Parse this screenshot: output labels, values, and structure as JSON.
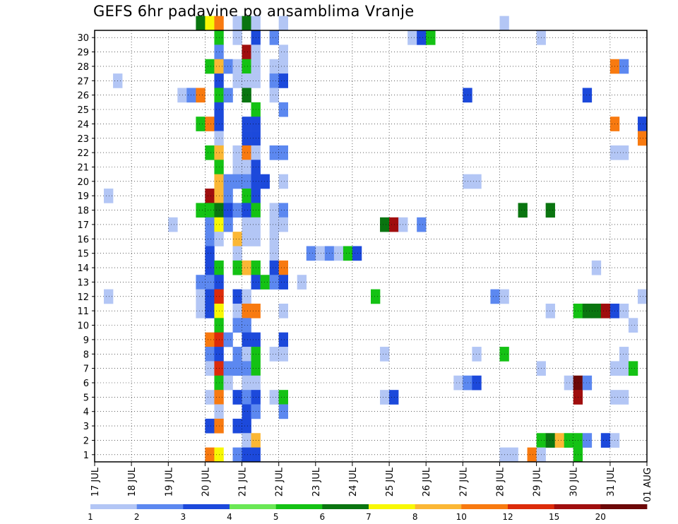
{
  "chart_data": {
    "type": "heatmap",
    "title": "GEFS 6hr padavine po ansamblima Vranje",
    "xlabel": "",
    "ylabel": "",
    "x_ticks": [
      "17 JUL",
      "18 JUL",
      "19 JUL",
      "20 JUL",
      "21 JUL",
      "22 JUL",
      "23 JUL",
      "24 JUL",
      "25 JUL",
      "26 JUL",
      "27 JUL",
      "28 JUL",
      "29 JUL",
      "30 JUL",
      "31 JUL",
      "01 AUG"
    ],
    "y_ticks": [
      "1",
      "2",
      "3",
      "4",
      "5",
      "6",
      "7",
      "8",
      "9",
      "10",
      "11",
      "12",
      "13",
      "14",
      "15",
      "16",
      "17",
      "18",
      "19",
      "20",
      "21",
      "22",
      "23",
      "24",
      "25",
      "26",
      "27",
      "28",
      "29",
      "30"
    ],
    "x_unit": "6-hour step from 17 JUL 00Z (4 steps per day)",
    "ylim": [
      0,
      30
    ],
    "grid": true,
    "grid_style": "dotted",
    "levels": [
      1,
      2,
      3,
      4,
      5,
      6,
      7,
      8,
      10,
      12,
      15,
      20
    ],
    "colors": [
      "#b3c6f5",
      "#5c88f0",
      "#1c49db",
      "#6ae855",
      "#14c214",
      "#0a7510",
      "#f8f804",
      "#fbb735",
      "#f87a10",
      "#dc2b0a",
      "#a00e0e",
      "#6c0808"
    ],
    "legend_position": "bottom",
    "cells": [
      {
        "t": 1,
        "m": 11,
        "v": 1
      },
      {
        "t": 1,
        "m": 18,
        "v": 1
      },
      {
        "t": 2,
        "m": 26,
        "v": 1
      },
      {
        "t": 8,
        "m": 16,
        "v": 1
      },
      {
        "t": 9,
        "m": 25,
        "v": 1
      },
      {
        "t": 10,
        "m": 25,
        "v": 2
      },
      {
        "t": 11,
        "m": 30,
        "v": 6
      },
      {
        "t": 11,
        "m": 25,
        "v": 10
      },
      {
        "t": 11,
        "m": 23,
        "v": 5
      },
      {
        "t": 11,
        "m": 17,
        "v": 5
      },
      {
        "t": 11,
        "m": 12,
        "v": 2
      },
      {
        "t": 11,
        "m": 11,
        "v": 1
      },
      {
        "t": 11,
        "m": 10,
        "v": 1
      },
      {
        "t": 12,
        "m": 30,
        "v": 7
      },
      {
        "t": 12,
        "m": 27,
        "v": 5
      },
      {
        "t": 12,
        "m": 23,
        "v": 10
      },
      {
        "t": 12,
        "m": 21,
        "v": 5
      },
      {
        "t": 12,
        "m": 18,
        "v": 15
      },
      {
        "t": 12,
        "m": 17,
        "v": 5
      },
      {
        "t": 12,
        "m": 16,
        "v": 2
      },
      {
        "t": 12,
        "m": 15,
        "v": 2
      },
      {
        "t": 12,
        "m": 14,
        "v": 3
      },
      {
        "t": 12,
        "m": 13,
        "v": 3
      },
      {
        "t": 12,
        "m": 12,
        "v": 2
      },
      {
        "t": 12,
        "m": 11,
        "v": 3
      },
      {
        "t": 12,
        "m": 10,
        "v": 3
      },
      {
        "t": 12,
        "m": 8,
        "v": 10
      },
      {
        "t": 12,
        "m": 7,
        "v": 2
      },
      {
        "t": 12,
        "m": 6,
        "v": 1
      },
      {
        "t": 12,
        "m": 4,
        "v": 1
      },
      {
        "t": 12,
        "m": 2,
        "v": 3
      },
      {
        "t": 12,
        "m": 0,
        "v": 10
      },
      {
        "t": 13,
        "m": 30,
        "v": 10
      },
      {
        "t": 13,
        "m": 29,
        "v": 5
      },
      {
        "t": 13,
        "m": 28,
        "v": 2
      },
      {
        "t": 13,
        "m": 27,
        "v": 8
      },
      {
        "t": 13,
        "m": 26,
        "v": 3
      },
      {
        "t": 13,
        "m": 25,
        "v": 5
      },
      {
        "t": 13,
        "m": 24,
        "v": 3
      },
      {
        "t": 13,
        "m": 23,
        "v": 3
      },
      {
        "t": 13,
        "m": 22,
        "v": 1
      },
      {
        "t": 13,
        "m": 21,
        "v": 8
      },
      {
        "t": 13,
        "m": 20,
        "v": 5
      },
      {
        "t": 13,
        "m": 19,
        "v": 8
      },
      {
        "t": 13,
        "m": 18,
        "v": 8
      },
      {
        "t": 13,
        "m": 17,
        "v": 6
      },
      {
        "t": 13,
        "m": 16,
        "v": 7
      },
      {
        "t": 13,
        "m": 15,
        "v": 1
      },
      {
        "t": 13,
        "m": 13,
        "v": 5
      },
      {
        "t": 13,
        "m": 12,
        "v": 3
      },
      {
        "t": 13,
        "m": 11,
        "v": 12
      },
      {
        "t": 13,
        "m": 10,
        "v": 7
      },
      {
        "t": 13,
        "m": 9,
        "v": 5
      },
      {
        "t": 13,
        "m": 8,
        "v": 12
      },
      {
        "t": 13,
        "m": 7,
        "v": 3
      },
      {
        "t": 13,
        "m": 6,
        "v": 12
      },
      {
        "t": 13,
        "m": 5,
        "v": 5
      },
      {
        "t": 13,
        "m": 4,
        "v": 10
      },
      {
        "t": 13,
        "m": 3,
        "v": 1
      },
      {
        "t": 13,
        "m": 2,
        "v": 10
      },
      {
        "t": 13,
        "m": 0,
        "v": 7
      },
      {
        "t": 14,
        "m": 27,
        "v": 2
      },
      {
        "t": 14,
        "m": 25,
        "v": 2
      },
      {
        "t": 14,
        "m": 19,
        "v": 2
      },
      {
        "t": 14,
        "m": 18,
        "v": 2
      },
      {
        "t": 14,
        "m": 17,
        "v": 3
      },
      {
        "t": 14,
        "m": 16,
        "v": 2
      },
      {
        "t": 14,
        "m": 8,
        "v": 2
      },
      {
        "t": 14,
        "m": 6,
        "v": 2
      },
      {
        "t": 14,
        "m": 5,
        "v": 1
      },
      {
        "t": 15,
        "m": 30,
        "v": 1
      },
      {
        "t": 15,
        "m": 29,
        "v": 1
      },
      {
        "t": 15,
        "m": 27,
        "v": 1
      },
      {
        "t": 15,
        "m": 26,
        "v": 1
      },
      {
        "t": 15,
        "m": 21,
        "v": 1
      },
      {
        "t": 15,
        "m": 20,
        "v": 1
      },
      {
        "t": 15,
        "m": 19,
        "v": 2
      },
      {
        "t": 15,
        "m": 17,
        "v": 2
      },
      {
        "t": 15,
        "m": 15,
        "v": 8
      },
      {
        "t": 15,
        "m": 14,
        "v": 1
      },
      {
        "t": 15,
        "m": 13,
        "v": 5
      },
      {
        "t": 15,
        "m": 11,
        "v": 3
      },
      {
        "t": 15,
        "m": 10,
        "v": 1
      },
      {
        "t": 15,
        "m": 9,
        "v": 2
      },
      {
        "t": 15,
        "m": 7,
        "v": 2
      },
      {
        "t": 15,
        "m": 6,
        "v": 2
      },
      {
        "t": 15,
        "m": 4,
        "v": 3
      },
      {
        "t": 15,
        "m": 2,
        "v": 3
      },
      {
        "t": 15,
        "m": 0,
        "v": 2
      },
      {
        "t": 16,
        "m": 30,
        "v": 6
      },
      {
        "t": 16,
        "m": 28,
        "v": 15
      },
      {
        "t": 16,
        "m": 27,
        "v": 5
      },
      {
        "t": 16,
        "m": 26,
        "v": 1
      },
      {
        "t": 16,
        "m": 25,
        "v": 6
      },
      {
        "t": 16,
        "m": 23,
        "v": 3
      },
      {
        "t": 16,
        "m": 22,
        "v": 3
      },
      {
        "t": 16,
        "m": 21,
        "v": 10
      },
      {
        "t": 16,
        "m": 20,
        "v": 1
      },
      {
        "t": 16,
        "m": 19,
        "v": 2
      },
      {
        "t": 16,
        "m": 18,
        "v": 5
      },
      {
        "t": 16,
        "m": 17,
        "v": 3
      },
      {
        "t": 16,
        "m": 16,
        "v": 1
      },
      {
        "t": 16,
        "m": 15,
        "v": 1
      },
      {
        "t": 16,
        "m": 13,
        "v": 8
      },
      {
        "t": 16,
        "m": 11,
        "v": 1
      },
      {
        "t": 16,
        "m": 10,
        "v": 10
      },
      {
        "t": 16,
        "m": 9,
        "v": 2
      },
      {
        "t": 16,
        "m": 8,
        "v": 3
      },
      {
        "t": 16,
        "m": 7,
        "v": 1
      },
      {
        "t": 16,
        "m": 6,
        "v": 2
      },
      {
        "t": 16,
        "m": 5,
        "v": 1
      },
      {
        "t": 16,
        "m": 4,
        "v": 2
      },
      {
        "t": 16,
        "m": 3,
        "v": 3
      },
      {
        "t": 16,
        "m": 2,
        "v": 3
      },
      {
        "t": 16,
        "m": 1,
        "v": 1
      },
      {
        "t": 16,
        "m": 0,
        "v": 3
      },
      {
        "t": 17,
        "m": 30,
        "v": 1
      },
      {
        "t": 17,
        "m": 29,
        "v": 3
      },
      {
        "t": 17,
        "m": 28,
        "v": 1
      },
      {
        "t": 17,
        "m": 27,
        "v": 1
      },
      {
        "t": 17,
        "m": 26,
        "v": 1
      },
      {
        "t": 17,
        "m": 24,
        "v": 5
      },
      {
        "t": 17,
        "m": 23,
        "v": 3
      },
      {
        "t": 17,
        "m": 22,
        "v": 3
      },
      {
        "t": 17,
        "m": 21,
        "v": 1
      },
      {
        "t": 17,
        "m": 20,
        "v": 3
      },
      {
        "t": 17,
        "m": 19,
        "v": 3
      },
      {
        "t": 17,
        "m": 18,
        "v": 3
      },
      {
        "t": 17,
        "m": 17,
        "v": 5
      },
      {
        "t": 17,
        "m": 16,
        "v": 1
      },
      {
        "t": 17,
        "m": 15,
        "v": 1
      },
      {
        "t": 17,
        "m": 13,
        "v": 5
      },
      {
        "t": 17,
        "m": 12,
        "v": 3
      },
      {
        "t": 17,
        "m": 10,
        "v": 10
      },
      {
        "t": 17,
        "m": 8,
        "v": 3
      },
      {
        "t": 17,
        "m": 7,
        "v": 5
      },
      {
        "t": 17,
        "m": 6,
        "v": 5
      },
      {
        "t": 17,
        "m": 5,
        "v": 1
      },
      {
        "t": 17,
        "m": 4,
        "v": 3
      },
      {
        "t": 17,
        "m": 3,
        "v": 2
      },
      {
        "t": 17,
        "m": 1,
        "v": 8
      },
      {
        "t": 17,
        "m": 0,
        "v": 3
      },
      {
        "t": 18,
        "m": 19,
        "v": 3
      },
      {
        "t": 18,
        "m": 12,
        "v": 5
      },
      {
        "t": 19,
        "m": 29,
        "v": 2
      },
      {
        "t": 19,
        "m": 27,
        "v": 1
      },
      {
        "t": 19,
        "m": 26,
        "v": 2
      },
      {
        "t": 19,
        "m": 25,
        "v": 1
      },
      {
        "t": 19,
        "m": 21,
        "v": 2
      },
      {
        "t": 19,
        "m": 17,
        "v": 1
      },
      {
        "t": 19,
        "m": 16,
        "v": 1
      },
      {
        "t": 19,
        "m": 15,
        "v": 1
      },
      {
        "t": 19,
        "m": 14,
        "v": 1
      },
      {
        "t": 19,
        "m": 13,
        "v": 3
      },
      {
        "t": 19,
        "m": 12,
        "v": 2
      },
      {
        "t": 19,
        "m": 7,
        "v": 1
      },
      {
        "t": 19,
        "m": 4,
        "v": 1
      },
      {
        "t": 20,
        "m": 30,
        "v": 1
      },
      {
        "t": 20,
        "m": 28,
        "v": 1
      },
      {
        "t": 20,
        "m": 27,
        "v": 1
      },
      {
        "t": 20,
        "m": 26,
        "v": 3
      },
      {
        "t": 20,
        "m": 24,
        "v": 2
      },
      {
        "t": 20,
        "m": 21,
        "v": 2
      },
      {
        "t": 20,
        "m": 19,
        "v": 1
      },
      {
        "t": 20,
        "m": 17,
        "v": 2
      },
      {
        "t": 20,
        "m": 16,
        "v": 1
      },
      {
        "t": 20,
        "m": 13,
        "v": 10
      },
      {
        "t": 20,
        "m": 12,
        "v": 3
      },
      {
        "t": 20,
        "m": 10,
        "v": 1
      },
      {
        "t": 20,
        "m": 8,
        "v": 3
      },
      {
        "t": 20,
        "m": 7,
        "v": 1
      },
      {
        "t": 20,
        "m": 4,
        "v": 5
      },
      {
        "t": 20,
        "m": 3,
        "v": 2
      },
      {
        "t": 22,
        "m": 12,
        "v": 1
      },
      {
        "t": 23,
        "m": 14,
        "v": 2
      },
      {
        "t": 24,
        "m": 14,
        "v": 1
      },
      {
        "t": 25,
        "m": 14,
        "v": 2
      },
      {
        "t": 26,
        "m": 14,
        "v": 1
      },
      {
        "t": 27,
        "m": 14,
        "v": 5
      },
      {
        "t": 28,
        "m": 14,
        "v": 3
      },
      {
        "t": 30,
        "m": 11,
        "v": 5
      },
      {
        "t": 31,
        "m": 16,
        "v": 6
      },
      {
        "t": 31,
        "m": 7,
        "v": 1
      },
      {
        "t": 31,
        "m": 4,
        "v": 1
      },
      {
        "t": 32,
        "m": 16,
        "v": 15
      },
      {
        "t": 32,
        "m": 4,
        "v": 3
      },
      {
        "t": 33,
        "m": 16,
        "v": 1
      },
      {
        "t": 34,
        "m": 29,
        "v": 1
      },
      {
        "t": 35,
        "m": 29,
        "v": 3
      },
      {
        "t": 35,
        "m": 16,
        "v": 2
      },
      {
        "t": 36,
        "m": 29,
        "v": 5
      },
      {
        "t": 39,
        "m": 5,
        "v": 1
      },
      {
        "t": 40,
        "m": 25,
        "v": 3
      },
      {
        "t": 40,
        "m": 19,
        "v": 1
      },
      {
        "t": 40,
        "m": 5,
        "v": 2
      },
      {
        "t": 41,
        "m": 19,
        "v": 1
      },
      {
        "t": 41,
        "m": 7,
        "v": 1
      },
      {
        "t": 41,
        "m": 5,
        "v": 3
      },
      {
        "t": 43,
        "m": 11,
        "v": 2
      },
      {
        "t": 44,
        "m": 30,
        "v": 1
      },
      {
        "t": 44,
        "m": 11,
        "v": 1
      },
      {
        "t": 44,
        "m": 7,
        "v": 5
      },
      {
        "t": 44,
        "m": 0,
        "v": 1
      },
      {
        "t": 45,
        "m": 0,
        "v": 1
      },
      {
        "t": 46,
        "m": 17,
        "v": 6
      },
      {
        "t": 47,
        "m": 0,
        "v": 10
      },
      {
        "t": 48,
        "m": 29,
        "v": 1
      },
      {
        "t": 48,
        "m": 6,
        "v": 1
      },
      {
        "t": 48,
        "m": 1,
        "v": 5
      },
      {
        "t": 48,
        "m": 0,
        "v": 1
      },
      {
        "t": 49,
        "m": 17,
        "v": 6
      },
      {
        "t": 49,
        "m": 10,
        "v": 1
      },
      {
        "t": 49,
        "m": 1,
        "v": 6
      },
      {
        "t": 50,
        "m": 1,
        "v": 8
      },
      {
        "t": 51,
        "m": 5,
        "v": 1
      },
      {
        "t": 51,
        "m": 1,
        "v": 5
      },
      {
        "t": 52,
        "m": 10,
        "v": 5
      },
      {
        "t": 52,
        "m": 5,
        "v": 20
      },
      {
        "t": 52,
        "m": 4,
        "v": 15
      },
      {
        "t": 52,
        "m": 1,
        "v": 5
      },
      {
        "t": 52,
        "m": 0,
        "v": 5
      },
      {
        "t": 53,
        "m": 25,
        "v": 3
      },
      {
        "t": 53,
        "m": 10,
        "v": 6
      },
      {
        "t": 53,
        "m": 5,
        "v": 2
      },
      {
        "t": 53,
        "m": 1,
        "v": 2
      },
      {
        "t": 54,
        "m": 13,
        "v": 1
      },
      {
        "t": 54,
        "m": 10,
        "v": 6
      },
      {
        "t": 55,
        "m": 10,
        "v": 15
      },
      {
        "t": 55,
        "m": 1,
        "v": 3
      },
      {
        "t": 56,
        "m": 27,
        "v": 10
      },
      {
        "t": 56,
        "m": 23,
        "v": 10
      },
      {
        "t": 56,
        "m": 21,
        "v": 1
      },
      {
        "t": 56,
        "m": 10,
        "v": 3
      },
      {
        "t": 56,
        "m": 6,
        "v": 1
      },
      {
        "t": 56,
        "m": 4,
        "v": 1
      },
      {
        "t": 56,
        "m": 1,
        "v": 1
      },
      {
        "t": 57,
        "m": 27,
        "v": 2
      },
      {
        "t": 57,
        "m": 21,
        "v": 1
      },
      {
        "t": 57,
        "m": 10,
        "v": 1
      },
      {
        "t": 57,
        "m": 7,
        "v": 1
      },
      {
        "t": 57,
        "m": 6,
        "v": 1
      },
      {
        "t": 57,
        "m": 4,
        "v": 1
      },
      {
        "t": 58,
        "m": 9,
        "v": 1
      },
      {
        "t": 58,
        "m": 6,
        "v": 5
      },
      {
        "t": 59,
        "m": 23,
        "v": 3
      },
      {
        "t": 59,
        "m": 22,
        "v": 10
      },
      {
        "t": 59,
        "m": 11,
        "v": 1
      }
    ]
  },
  "colorbar": {
    "labels": [
      "1",
      "2",
      "3",
      "4",
      "5",
      "6",
      "7",
      "8",
      "10",
      "12",
      "15",
      "20"
    ]
  }
}
